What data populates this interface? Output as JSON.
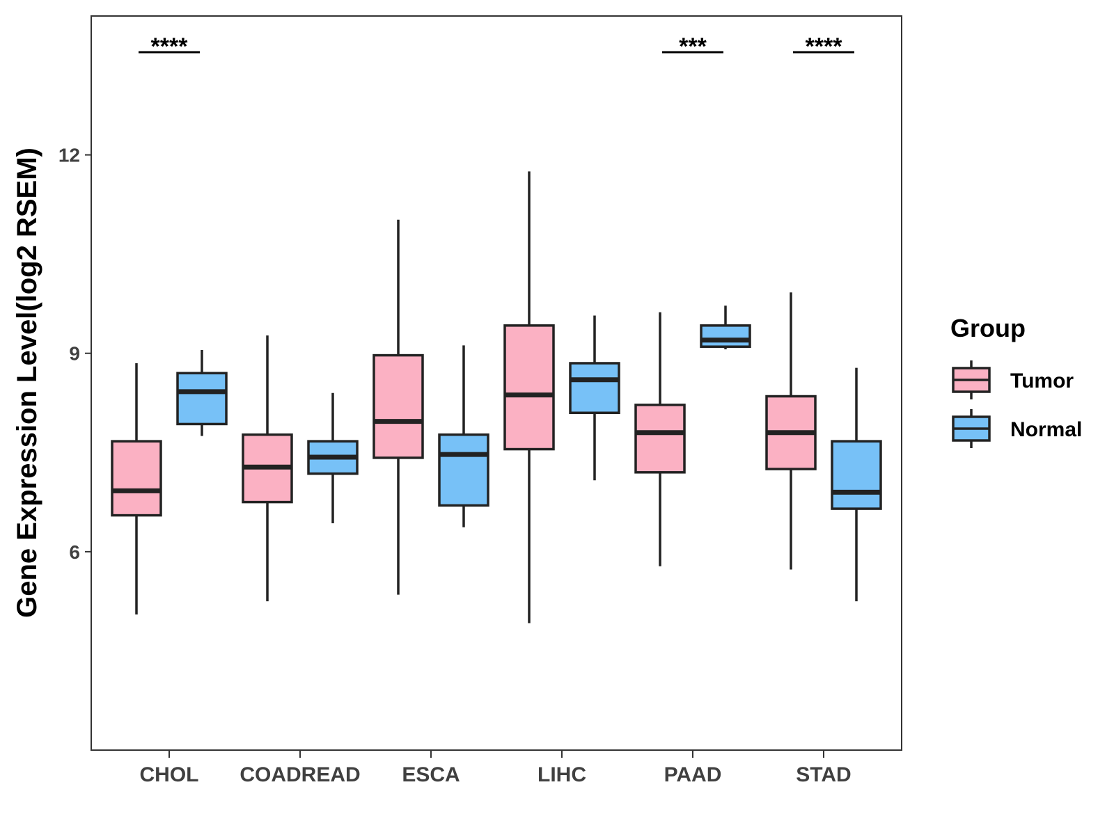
{
  "chart_data": {
    "type": "boxplot",
    "title": "",
    "xlabel": "",
    "ylabel": "Gene Expression Level(log2 RSEM)",
    "ylim": [
      3.0,
      14.1
    ],
    "yticks": [
      6,
      9,
      12
    ],
    "categories": [
      "CHOL",
      "COADREAD",
      "ESCA",
      "LIHC",
      "PAAD",
      "STAD"
    ],
    "legend": {
      "title": "Group",
      "position": "right",
      "entries": [
        {
          "name": "Tumor",
          "color": "#fbb1c3"
        },
        {
          "name": "Normal",
          "color": "#77c1f7"
        }
      ]
    },
    "series": [
      {
        "name": "Tumor",
        "color": "#fbb1c3",
        "boxes": [
          {
            "category": "CHOL",
            "min": 5.05,
            "q1": 6.55,
            "median": 6.92,
            "q3": 7.67,
            "max": 8.85
          },
          {
            "category": "COADREAD",
            "min": 5.25,
            "q1": 6.75,
            "median": 7.28,
            "q3": 7.77,
            "max": 9.27
          },
          {
            "category": "ESCA",
            "min": 5.35,
            "q1": 7.42,
            "median": 7.97,
            "q3": 8.97,
            "max": 11.02
          },
          {
            "category": "LIHC",
            "min": 4.92,
            "q1": 7.55,
            "median": 8.37,
            "q3": 9.42,
            "max": 11.75
          },
          {
            "category": "PAAD",
            "min": 5.78,
            "q1": 7.2,
            "median": 7.8,
            "q3": 8.22,
            "max": 9.62
          },
          {
            "category": "STAD",
            "min": 5.73,
            "q1": 7.25,
            "median": 7.8,
            "q3": 8.35,
            "max": 9.92
          }
        ]
      },
      {
        "name": "Normal",
        "color": "#77c1f7",
        "boxes": [
          {
            "category": "CHOL",
            "min": 7.75,
            "q1": 7.93,
            "median": 8.42,
            "q3": 8.7,
            "max": 9.05
          },
          {
            "category": "COADREAD",
            "min": 6.43,
            "q1": 7.18,
            "median": 7.43,
            "q3": 7.67,
            "max": 8.4
          },
          {
            "category": "ESCA",
            "min": 6.37,
            "q1": 6.7,
            "median": 7.47,
            "q3": 7.77,
            "max": 9.12
          },
          {
            "category": "LIHC",
            "min": 7.08,
            "q1": 8.1,
            "median": 8.6,
            "q3": 8.85,
            "max": 9.57
          },
          {
            "category": "PAAD",
            "min": 9.06,
            "q1": 9.1,
            "median": 9.2,
            "q3": 9.42,
            "max": 9.72
          },
          {
            "category": "STAD",
            "min": 5.25,
            "q1": 6.65,
            "median": 6.9,
            "q3": 7.67,
            "max": 8.78
          }
        ]
      }
    ],
    "annotations": [
      {
        "category": "CHOL",
        "label": "****"
      },
      {
        "category": "PAAD",
        "label": "***"
      },
      {
        "category": "STAD",
        "label": "****"
      }
    ]
  }
}
